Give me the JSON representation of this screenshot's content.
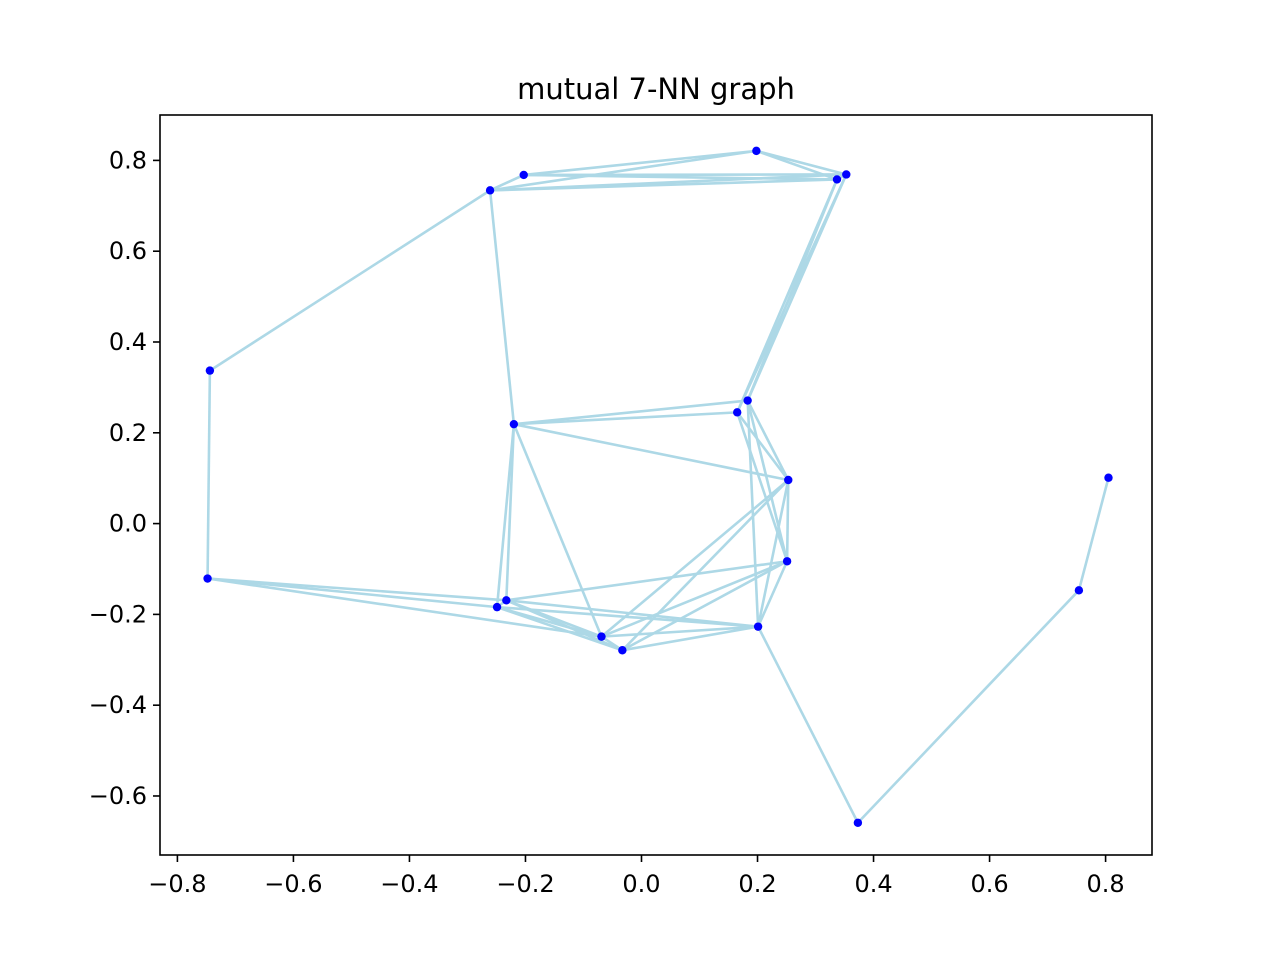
{
  "chart_data": {
    "type": "scatter",
    "title": "mutual 7-NN graph",
    "xlabel": "",
    "ylabel": "",
    "xlim": [
      -0.83,
      0.88
    ],
    "ylim": [
      -0.73,
      0.9
    ],
    "xticks": [
      -0.8,
      -0.6,
      -0.4,
      -0.2,
      0.0,
      0.2,
      0.4,
      0.6,
      0.8
    ],
    "xtick_labels": [
      "−0.8",
      "−0.6",
      "−0.4",
      "−0.2",
      "0.0",
      "0.2",
      "0.4",
      "0.6",
      "0.8"
    ],
    "yticks": [
      -0.6,
      -0.4,
      -0.2,
      0.0,
      0.2,
      0.4,
      0.6,
      0.8
    ],
    "ytick_labels": [
      "−0.6",
      "−0.4",
      "−0.2",
      "0.0",
      "0.2",
      "0.4",
      "0.6",
      "0.8"
    ],
    "grid": false,
    "node_color": "#0000ff",
    "edge_color": "#add8e6",
    "nodes": [
      {
        "id": 0,
        "x": 0.198,
        "y": 0.821
      },
      {
        "id": 1,
        "x": 0.353,
        "y": 0.769
      },
      {
        "id": 2,
        "x": 0.337,
        "y": 0.758
      },
      {
        "id": 3,
        "x": -0.203,
        "y": 0.768
      },
      {
        "id": 4,
        "x": -0.261,
        "y": 0.734
      },
      {
        "id": 5,
        "x": -0.744,
        "y": 0.337
      },
      {
        "id": 6,
        "x": -0.748,
        "y": -0.121
      },
      {
        "id": 7,
        "x": -0.22,
        "y": 0.219
      },
      {
        "id": 8,
        "x": 0.183,
        "y": 0.271
      },
      {
        "id": 9,
        "x": 0.165,
        "y": 0.245
      },
      {
        "id": 10,
        "x": 0.253,
        "y": 0.096
      },
      {
        "id": 11,
        "x": 0.251,
        "y": -0.083
      },
      {
        "id": 12,
        "x": 0.201,
        "y": -0.227
      },
      {
        "id": 13,
        "x": -0.233,
        "y": -0.169
      },
      {
        "id": 14,
        "x": -0.249,
        "y": -0.184
      },
      {
        "id": 15,
        "x": -0.069,
        "y": -0.249
      },
      {
        "id": 16,
        "x": -0.033,
        "y": -0.279
      },
      {
        "id": 17,
        "x": 0.373,
        "y": -0.659
      },
      {
        "id": 18,
        "x": 0.754,
        "y": -0.147
      },
      {
        "id": 19,
        "x": 0.805,
        "y": 0.101
      }
    ],
    "edges": [
      [
        0,
        1
      ],
      [
        0,
        2
      ],
      [
        0,
        3
      ],
      [
        0,
        4
      ],
      [
        1,
        2
      ],
      [
        1,
        3
      ],
      [
        1,
        4
      ],
      [
        1,
        8
      ],
      [
        1,
        9
      ],
      [
        2,
        3
      ],
      [
        2,
        4
      ],
      [
        2,
        8
      ],
      [
        2,
        9
      ],
      [
        3,
        4
      ],
      [
        4,
        5
      ],
      [
        4,
        7
      ],
      [
        5,
        6
      ],
      [
        6,
        13
      ],
      [
        6,
        14
      ],
      [
        6,
        15
      ],
      [
        7,
        8
      ],
      [
        7,
        9
      ],
      [
        7,
        10
      ],
      [
        7,
        13
      ],
      [
        7,
        14
      ],
      [
        7,
        15
      ],
      [
        8,
        10
      ],
      [
        8,
        11
      ],
      [
        8,
        12
      ],
      [
        9,
        10
      ],
      [
        9,
        11
      ],
      [
        10,
        11
      ],
      [
        10,
        12
      ],
      [
        10,
        15
      ],
      [
        10,
        16
      ],
      [
        11,
        12
      ],
      [
        11,
        13
      ],
      [
        11,
        15
      ],
      [
        11,
        16
      ],
      [
        12,
        13
      ],
      [
        12,
        14
      ],
      [
        12,
        15
      ],
      [
        12,
        16
      ],
      [
        12,
        17
      ],
      [
        13,
        14
      ],
      [
        13,
        15
      ],
      [
        13,
        16
      ],
      [
        14,
        15
      ],
      [
        14,
        16
      ],
      [
        15,
        16
      ],
      [
        17,
        18
      ],
      [
        18,
        19
      ]
    ]
  }
}
